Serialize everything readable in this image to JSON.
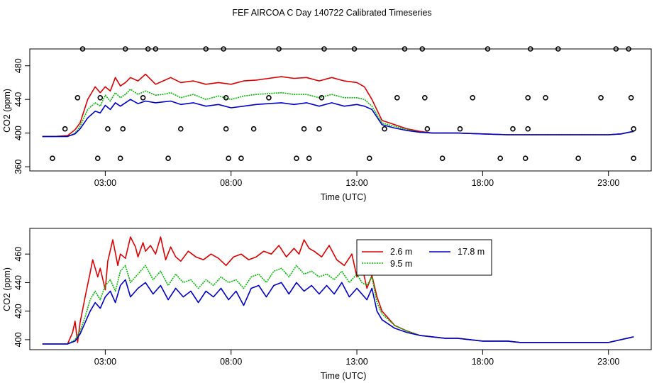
{
  "figure_title": "FEF AIRCOA C  Day 140722  Calibrated Timeseries",
  "colors": {
    "s1": "#dd0000",
    "s2": "#00bb00",
    "s3": "#0000cc",
    "axis": "#000000"
  },
  "chart_data": [
    {
      "type": "line",
      "title": "",
      "xlabel": "Time (UTC)",
      "ylabel": "CO2 (ppm)",
      "xlim": [
        0,
        24.7
      ],
      "ylim": [
        355,
        500
      ],
      "x_ticks": [
        3,
        8,
        13,
        18,
        23
      ],
      "x_tick_labels": [
        "03:00",
        "08:00",
        "13:00",
        "18:00",
        "23:00"
      ],
      "y_ticks": [
        360,
        400,
        440,
        480
      ],
      "y_tick_labels": [
        "360",
        "400",
        "440",
        "480"
      ],
      "series": [
        {
          "name": "2.6 m",
          "color": "#dd0000",
          "x": [
            0.5,
            1.0,
            1.5,
            1.8,
            2.0,
            2.3,
            2.6,
            2.8,
            3.0,
            3.2,
            3.4,
            3.6,
            3.8,
            4.0,
            4.3,
            4.6,
            5.0,
            5.3,
            5.6,
            6.0,
            6.5,
            7.0,
            7.5,
            8.0,
            8.5,
            9.0,
            9.5,
            10.0,
            10.5,
            11.0,
            11.5,
            12.0,
            12.5,
            13.0,
            13.3,
            13.6,
            14.0,
            14.5,
            15.0,
            15.5,
            16.0,
            17.0,
            18.0,
            19.0,
            20.0,
            21.0,
            22.0,
            23.0,
            23.5,
            24.0
          ],
          "y": [
            396,
            396,
            397,
            404,
            412,
            440,
            455,
            448,
            455,
            450,
            466,
            456,
            460,
            466,
            462,
            470,
            458,
            462,
            466,
            460,
            462,
            458,
            460,
            458,
            462,
            463,
            465,
            467,
            465,
            466,
            462,
            466,
            462,
            460,
            455,
            440,
            415,
            410,
            405,
            402,
            400,
            400,
            399,
            398,
            398,
            398,
            398,
            398,
            399,
            402
          ]
        },
        {
          "name": "9.5 m",
          "color": "#00bb00",
          "x": [
            0.5,
            1.0,
            1.5,
            1.8,
            2.0,
            2.3,
            2.6,
            2.8,
            3.0,
            3.2,
            3.4,
            3.6,
            3.8,
            4.0,
            4.3,
            4.6,
            5.0,
            5.3,
            5.6,
            6.0,
            6.5,
            7.0,
            7.5,
            8.0,
            8.5,
            9.0,
            9.5,
            10.0,
            10.5,
            11.0,
            11.5,
            12.0,
            12.5,
            13.0,
            13.3,
            13.6,
            14.0,
            14.5,
            15.0,
            15.5,
            16.0,
            17.0,
            18.0,
            19.0,
            20.0,
            21.0,
            22.0,
            23.0,
            23.5,
            24.0
          ],
          "y": [
            396,
            396,
            396,
            400,
            408,
            428,
            436,
            432,
            445,
            438,
            448,
            442,
            446,
            452,
            446,
            450,
            445,
            446,
            448,
            442,
            446,
            440,
            444,
            440,
            444,
            446,
            447,
            448,
            446,
            446,
            442,
            446,
            442,
            442,
            440,
            432,
            412,
            408,
            404,
            401,
            400,
            400,
            399,
            398,
            398,
            398,
            398,
            398,
            399,
            402
          ]
        },
        {
          "name": "17.8 m",
          "color": "#0000cc",
          "x": [
            0.5,
            1.0,
            1.5,
            1.8,
            2.0,
            2.3,
            2.6,
            2.8,
            3.0,
            3.2,
            3.4,
            3.6,
            3.8,
            4.0,
            4.3,
            4.6,
            5.0,
            5.3,
            5.6,
            6.0,
            6.5,
            7.0,
            7.5,
            8.0,
            8.5,
            9.0,
            9.5,
            10.0,
            10.5,
            11.0,
            11.5,
            12.0,
            12.5,
            13.0,
            13.3,
            13.6,
            14.0,
            14.5,
            15.0,
            15.5,
            16.0,
            17.0,
            18.0,
            19.0,
            20.0,
            21.0,
            22.0,
            23.0,
            23.5,
            24.0
          ],
          "y": [
            396,
            396,
            396,
            399,
            405,
            418,
            426,
            424,
            433,
            428,
            436,
            432,
            436,
            440,
            435,
            438,
            436,
            437,
            438,
            434,
            436,
            432,
            434,
            430,
            432,
            434,
            435,
            436,
            434,
            436,
            432,
            436,
            432,
            434,
            432,
            428,
            410,
            406,
            403,
            401,
            400,
            400,
            399,
            398,
            398,
            398,
            398,
            398,
            399,
            402
          ]
        }
      ],
      "markers": {
        "style": "open-circle",
        "x": [
          0.9,
          1.4,
          1.9,
          2.1,
          2.7,
          2.8,
          3.1,
          3.6,
          3.7,
          3.8,
          4.5,
          4.7,
          5.0,
          5.5,
          6.0,
          7.0,
          7.7,
          7.8,
          7.8,
          7.9,
          8.4,
          8.9,
          9.5,
          9.9,
          10.6,
          10.9,
          11.1,
          11.5,
          11.6,
          11.7,
          12.9,
          13.5,
          14.1,
          14.6,
          14.9,
          15.6,
          15.7,
          15.8,
          16.4,
          17.1,
          17.6,
          18.2,
          18.7,
          19.2,
          19.7,
          19.8,
          19.8,
          19.9,
          20.5,
          21.0,
          21.8,
          22.7,
          23.3,
          23.8,
          23.9,
          24.0,
          24.0
        ],
        "y": [
          370,
          405,
          442,
          500,
          370,
          442,
          405,
          370,
          405,
          500,
          442,
          500,
          500,
          370,
          405,
          500,
          500,
          442,
          405,
          370,
          370,
          405,
          442,
          500,
          370,
          405,
          370,
          405,
          442,
          500,
          500,
          370,
          405,
          442,
          500,
          500,
          442,
          405,
          370,
          405,
          442,
          500,
          370,
          405,
          370,
          405,
          442,
          500,
          442,
          500,
          370,
          442,
          500,
          500,
          442,
          405,
          370
        ]
      }
    },
    {
      "type": "line",
      "title": "",
      "xlabel": "Time (UTC)",
      "ylabel": "CO2 (ppm)",
      "xlim": [
        0,
        24.7
      ],
      "ylim": [
        393,
        478
      ],
      "x_ticks": [
        3,
        8,
        13,
        18,
        23
      ],
      "x_tick_labels": [
        "03:00",
        "08:00",
        "13:00",
        "18:00",
        "23:00"
      ],
      "y_ticks": [
        400,
        420,
        440,
        460
      ],
      "y_tick_labels": [
        "400",
        "420",
        "440",
        "460"
      ],
      "legend": {
        "position": "top-right-inner",
        "entries": [
          "2.6 m",
          "9.5 m",
          "17.8 m"
        ]
      },
      "series": [
        {
          "name": "2.6 m",
          "color": "#dd0000",
          "x": [
            0.5,
            1.0,
            1.5,
            1.7,
            1.8,
            1.9,
            2.0,
            2.2,
            2.4,
            2.5,
            2.7,
            2.8,
            3.0,
            3.1,
            3.3,
            3.5,
            3.6,
            3.8,
            4.0,
            4.2,
            4.3,
            4.5,
            4.6,
            4.8,
            5.0,
            5.2,
            5.4,
            5.6,
            5.8,
            6.0,
            6.3,
            6.6,
            6.9,
            7.2,
            7.5,
            7.8,
            8.1,
            8.4,
            8.7,
            9.0,
            9.3,
            9.6,
            9.9,
            10.2,
            10.5,
            10.7,
            10.9,
            11.1,
            11.3,
            11.6,
            11.9,
            12.2,
            12.5,
            12.8,
            13.0,
            13.2,
            13.4,
            13.6,
            13.8,
            14.0,
            14.5,
            15.0,
            15.5,
            16.0,
            16.5,
            17.0,
            17.5,
            18.0,
            18.5,
            19.0,
            19.5,
            20.0,
            20.5,
            21.0,
            21.5,
            22.0,
            22.5,
            23.0,
            23.5,
            24.0
          ],
          "y": [
            397,
            397,
            397,
            405,
            413,
            398,
            412,
            430,
            447,
            456,
            444,
            450,
            435,
            455,
            470,
            452,
            460,
            457,
            472,
            465,
            458,
            468,
            462,
            466,
            460,
            472,
            456,
            465,
            458,
            455,
            462,
            458,
            456,
            460,
            457,
            452,
            458,
            460,
            456,
            458,
            462,
            460,
            466,
            458,
            464,
            460,
            470,
            464,
            462,
            458,
            466,
            456,
            452,
            460,
            444,
            452,
            436,
            445,
            430,
            420,
            410,
            406,
            403,
            402,
            401,
            401,
            400,
            399,
            399,
            399,
            398,
            398,
            398,
            398,
            398,
            398,
            398,
            398,
            400,
            402
          ]
        },
        {
          "name": "9.5 m",
          "color": "#00bb00",
          "x": [
            0.5,
            1.0,
            1.5,
            1.8,
            2.0,
            2.2,
            2.4,
            2.6,
            2.8,
            3.0,
            3.2,
            3.4,
            3.6,
            3.8,
            4.0,
            4.3,
            4.6,
            4.9,
            5.2,
            5.5,
            5.8,
            6.1,
            6.4,
            6.7,
            7.0,
            7.3,
            7.6,
            7.9,
            8.2,
            8.5,
            8.8,
            9.1,
            9.4,
            9.7,
            10.0,
            10.3,
            10.6,
            10.9,
            11.2,
            11.5,
            11.8,
            12.1,
            12.4,
            12.7,
            13.0,
            13.2,
            13.4,
            13.6,
            13.8,
            14.0,
            14.5,
            15.0,
            15.5,
            16.0,
            16.5,
            17.0,
            17.5,
            18.0,
            18.5,
            19.0,
            19.5,
            20.0,
            20.5,
            21.0,
            21.5,
            22.0,
            22.5,
            23.0,
            23.5,
            24.0
          ],
          "y": [
            397,
            397,
            397,
            400,
            406,
            416,
            428,
            434,
            428,
            438,
            442,
            434,
            448,
            452,
            440,
            446,
            452,
            442,
            448,
            438,
            446,
            440,
            442,
            436,
            442,
            438,
            444,
            440,
            442,
            436,
            444,
            446,
            440,
            448,
            450,
            444,
            452,
            446,
            448,
            444,
            446,
            442,
            448,
            440,
            446,
            440,
            438,
            444,
            426,
            418,
            410,
            406,
            403,
            402,
            401,
            401,
            400,
            399,
            399,
            399,
            398,
            398,
            398,
            398,
            398,
            398,
            398,
            398,
            400,
            402
          ]
        },
        {
          "name": "17.8 m",
          "color": "#0000cc",
          "x": [
            0.5,
            1.0,
            1.5,
            1.8,
            2.0,
            2.2,
            2.4,
            2.6,
            2.8,
            3.0,
            3.2,
            3.4,
            3.6,
            3.8,
            4.0,
            4.3,
            4.6,
            4.9,
            5.2,
            5.5,
            5.8,
            6.1,
            6.4,
            6.7,
            7.0,
            7.3,
            7.6,
            7.9,
            8.2,
            8.5,
            8.8,
            9.1,
            9.4,
            9.7,
            10.0,
            10.3,
            10.6,
            10.9,
            11.2,
            11.5,
            11.8,
            12.1,
            12.4,
            12.7,
            13.0,
            13.2,
            13.4,
            13.6,
            13.8,
            14.0,
            14.5,
            15.0,
            15.5,
            16.0,
            16.5,
            17.0,
            17.5,
            18.0,
            18.5,
            19.0,
            19.5,
            20.0,
            20.5,
            21.0,
            21.5,
            22.0,
            22.5,
            23.0,
            23.5,
            24.0
          ],
          "y": [
            397,
            397,
            397,
            399,
            404,
            412,
            420,
            426,
            422,
            430,
            434,
            426,
            438,
            442,
            430,
            436,
            440,
            432,
            438,
            428,
            436,
            430,
            434,
            426,
            434,
            430,
            436,
            428,
            434,
            424,
            436,
            438,
            430,
            438,
            440,
            432,
            440,
            434,
            438,
            432,
            438,
            432,
            440,
            430,
            436,
            432,
            428,
            436,
            420,
            414,
            408,
            405,
            403,
            402,
            401,
            401,
            400,
            399,
            399,
            399,
            398,
            398,
            398,
            398,
            398,
            398,
            398,
            398,
            400,
            402
          ]
        }
      ]
    }
  ]
}
